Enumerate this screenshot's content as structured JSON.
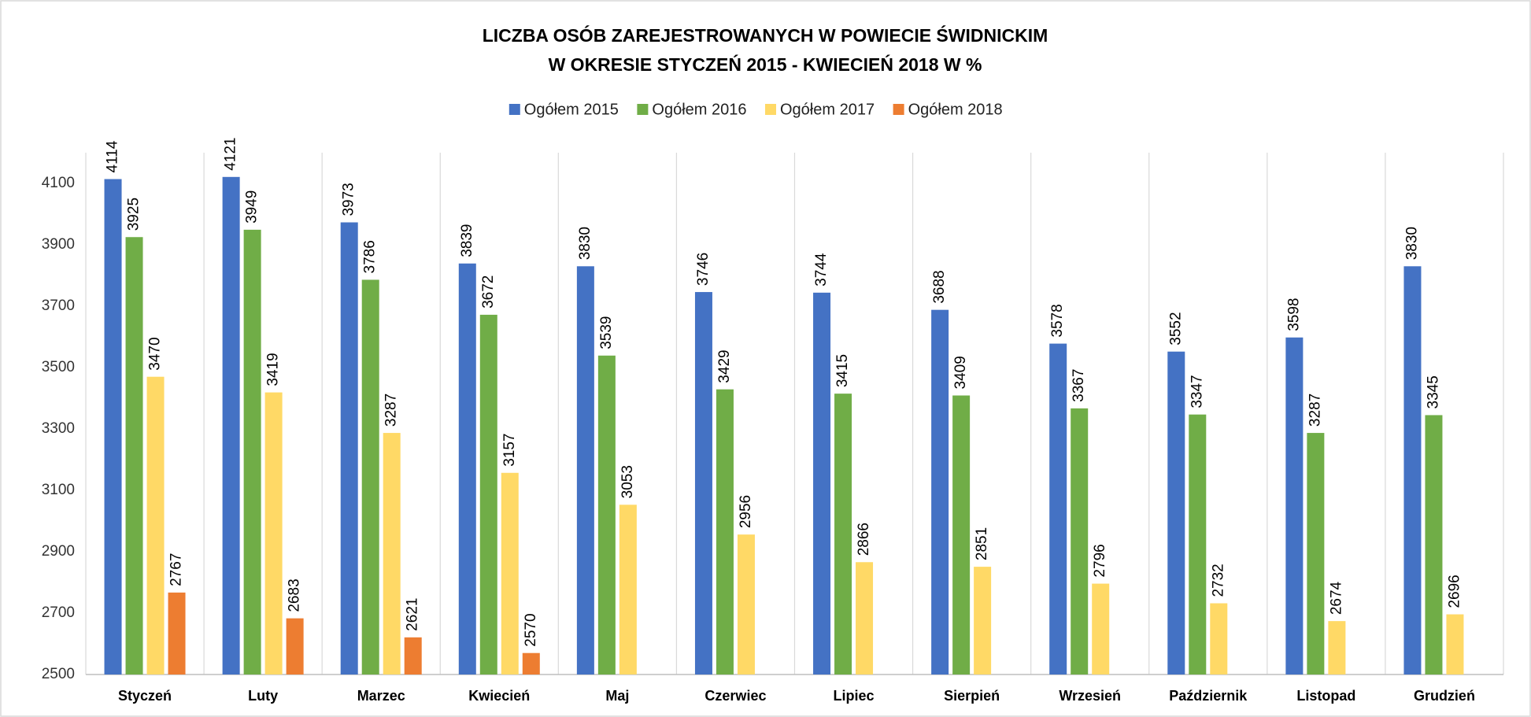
{
  "chart_data": {
    "type": "bar",
    "title": [
      "LICZBA OSÓB ZAREJESTROWANYCH W POWIECIE ŚWIDNICKIM",
      "W OKRESIE STYCZEŃ 2015 - KWIECIEŃ 2018 W %"
    ],
    "categories": [
      "Styczeń",
      "Luty",
      "Marzec",
      "Kwiecień",
      "Maj",
      "Czerwiec",
      "Lipiec",
      "Sierpień",
      "Wrzesień",
      "Październik",
      "Listopad",
      "Grudzień"
    ],
    "series": [
      {
        "name": "Ogółem 2015",
        "color": "#4472c4",
        "values": [
          4114,
          4121,
          3973,
          3839,
          3830,
          3746,
          3744,
          3688,
          3578,
          3552,
          3598,
          3830
        ]
      },
      {
        "name": "Ogółem 2016",
        "color": "#70ad47",
        "values": [
          3925,
          3949,
          3786,
          3672,
          3539,
          3429,
          3415,
          3409,
          3367,
          3347,
          3287,
          3345
        ]
      },
      {
        "name": "Ogółem 2017",
        "color": "#ffd966",
        "values": [
          3470,
          3419,
          3287,
          3157,
          3053,
          2956,
          2866,
          2851,
          2796,
          2732,
          2674,
          2696
        ]
      },
      {
        "name": "Ogółem 2018",
        "color": "#ed7d31",
        "values": [
          2767,
          2683,
          2621,
          2570,
          null,
          null,
          null,
          null,
          null,
          null,
          null,
          null
        ]
      }
    ],
    "ylim": [
      2500,
      4200
    ],
    "yticks": [
      2500,
      2700,
      2900,
      3100,
      3300,
      3500,
      3700,
      3900,
      4100
    ],
    "legend": "top"
  }
}
